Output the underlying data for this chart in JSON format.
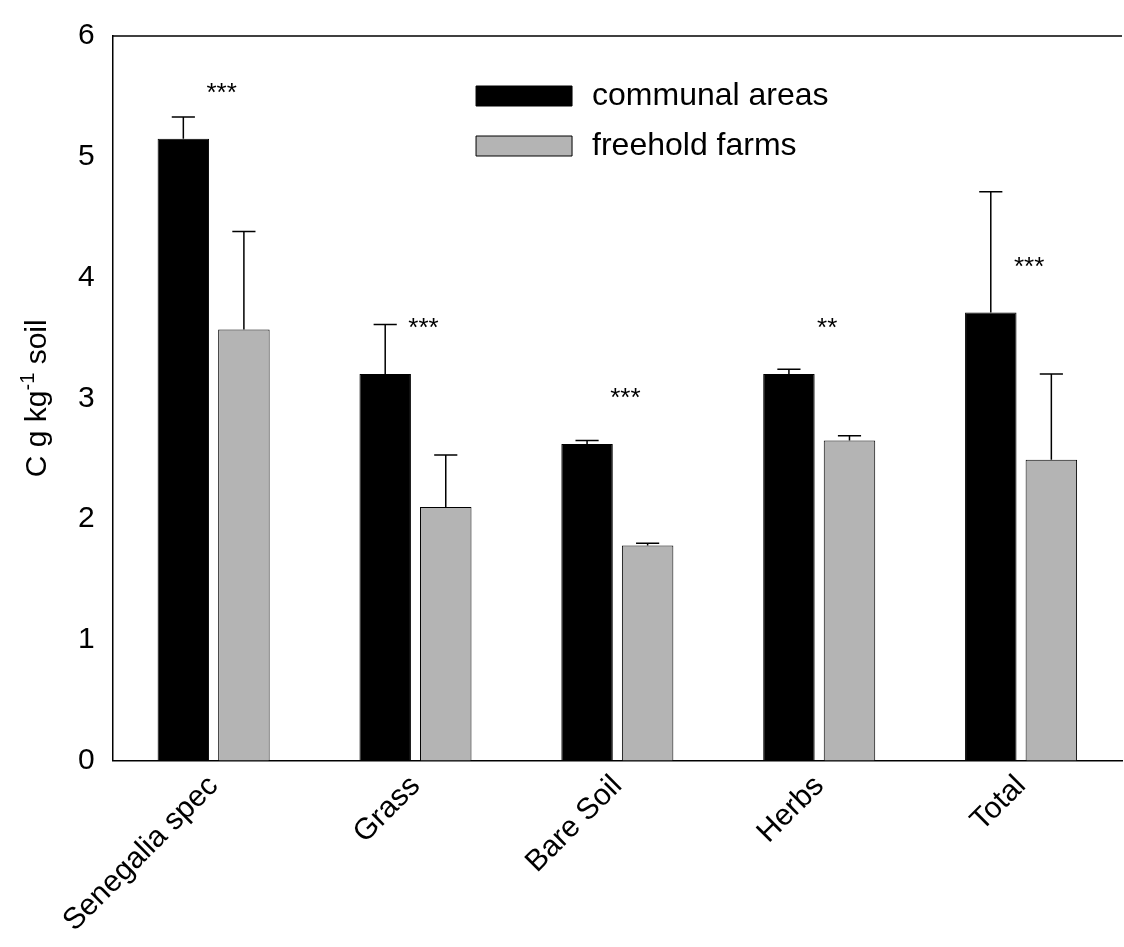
{
  "chart_data": {
    "type": "bar",
    "ylabel": "C g kg$^{-1}$ soil",
    "categories": [
      "Senegalia spec",
      "Grass",
      "Bare Soil",
      "Herbs",
      "Total"
    ],
    "series": [
      {
        "name": "communal areas",
        "color": "#000000",
        "values": [
          5.15,
          3.2,
          2.62,
          3.2,
          3.71
        ],
        "errors": [
          [
            5.15,
            5.33
          ],
          [
            3.2,
            3.61
          ],
          [
            2.62,
            2.65
          ],
          [
            3.2,
            3.24
          ],
          [
            3.71,
            4.71
          ]
        ]
      },
      {
        "name": "freehold farms",
        "color": "#b4b4b4",
        "values": [
          3.57,
          2.1,
          1.78,
          2.65,
          2.49
        ],
        "errors": [
          [
            3.57,
            4.38
          ],
          [
            2.1,
            2.53
          ],
          [
            1.78,
            1.8
          ],
          [
            2.65,
            2.69
          ],
          [
            2.49,
            3.2
          ]
        ]
      }
    ],
    "ylim": [
      0,
      6
    ],
    "yticks": [
      0,
      1,
      2,
      3,
      4,
      5,
      6
    ],
    "grid": false,
    "legend": "top right",
    "annotations": [
      "***",
      "***",
      "***",
      "**",
      "***"
    ]
  }
}
